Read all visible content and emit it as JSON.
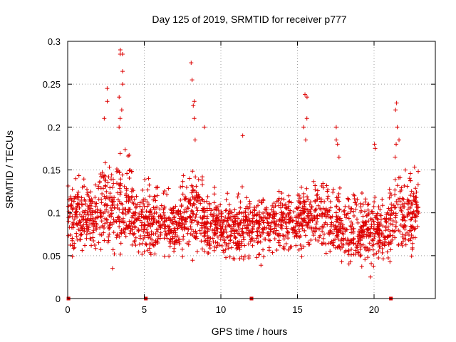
{
  "chart_data": {
    "type": "scatter",
    "title": "Day 125 of 2019, SRMTID for receiver p777",
    "xlabel": "GPS time / hours",
    "ylabel": "SRMTID / TECUs",
    "xlim": [
      0,
      24
    ],
    "ylim": [
      0,
      0.3
    ],
    "grid": true,
    "marker": "+",
    "marker_color": "#dd0000",
    "x_ticks": [
      0,
      5,
      10,
      15,
      20
    ],
    "x_tick_labels": [
      "0",
      "5",
      "10",
      "15",
      "20"
    ],
    "y_ticks": [
      0,
      0.05,
      0.1,
      0.15,
      0.2,
      0.25,
      0.3
    ],
    "y_tick_labels": [
      "0",
      "0.05",
      "0.1",
      "0.15",
      "0.2",
      "0.25",
      "0.3"
    ],
    "segments": [
      {
        "start": 0.0,
        "end": 2.0,
        "mean": 0.095,
        "spread": 0.03
      },
      {
        "start": 2.0,
        "end": 4.2,
        "mean": 0.11,
        "spread": 0.045
      },
      {
        "start": 4.2,
        "end": 7.5,
        "mean": 0.09,
        "spread": 0.03
      },
      {
        "start": 7.5,
        "end": 8.8,
        "mean": 0.1,
        "spread": 0.035
      },
      {
        "start": 8.8,
        "end": 15.0,
        "mean": 0.085,
        "spread": 0.028
      },
      {
        "start": 15.0,
        "end": 17.8,
        "mean": 0.095,
        "spread": 0.032
      },
      {
        "start": 17.8,
        "end": 21.0,
        "mean": 0.08,
        "spread": 0.03
      },
      {
        "start": 21.0,
        "end": 22.9,
        "mean": 0.1,
        "spread": 0.035
      }
    ],
    "peaks": [
      {
        "x": 3.5,
        "values": [
          0.29,
          0.285,
          0.285,
          0.265,
          0.25,
          0.235,
          0.22,
          0.21,
          0.2
        ]
      },
      {
        "x": 2.5,
        "values": [
          0.245,
          0.23,
          0.21
        ]
      },
      {
        "x": 8.2,
        "values": [
          0.275,
          0.255,
          0.23,
          0.225,
          0.21,
          0.185
        ]
      },
      {
        "x": 15.5,
        "values": [
          0.238,
          0.235,
          0.21,
          0.2,
          0.185
        ]
      },
      {
        "x": 17.6,
        "values": [
          0.2,
          0.185,
          0.18,
          0.165
        ]
      },
      {
        "x": 21.5,
        "values": [
          0.228,
          0.22,
          0.2,
          0.185,
          0.18,
          0.165
        ]
      },
      {
        "x": 11.4,
        "values": [
          0.19
        ]
      },
      {
        "x": 20.0,
        "values": [
          0.18,
          0.175
        ]
      },
      {
        "x": 9.0,
        "values": [
          0.2
        ]
      }
    ],
    "zero_markers": [
      0.05,
      5.1,
      12.0,
      21.1
    ]
  }
}
